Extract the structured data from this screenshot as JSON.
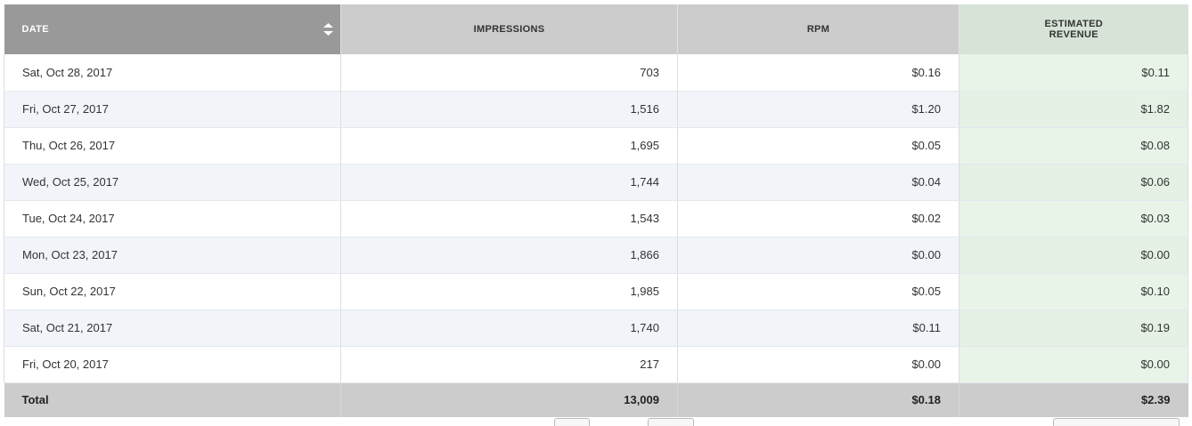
{
  "columns": {
    "date": "DATE",
    "impressions": "IMPRESSIONS",
    "rpm": "RPM",
    "estimated_revenue": "ESTIMATED\nREVENUE"
  },
  "rows": [
    {
      "date": "Sat, Oct 28, 2017",
      "impressions": "703",
      "rpm": "$0.16",
      "revenue": "$0.11"
    },
    {
      "date": "Fri, Oct 27, 2017",
      "impressions": "1,516",
      "rpm": "$1.20",
      "revenue": "$1.82"
    },
    {
      "date": "Thu, Oct 26, 2017",
      "impressions": "1,695",
      "rpm": "$0.05",
      "revenue": "$0.08"
    },
    {
      "date": "Wed, Oct 25, 2017",
      "impressions": "1,744",
      "rpm": "$0.04",
      "revenue": "$0.06"
    },
    {
      "date": "Tue, Oct 24, 2017",
      "impressions": "1,543",
      "rpm": "$0.02",
      "revenue": "$0.03"
    },
    {
      "date": "Mon, Oct 23, 2017",
      "impressions": "1,866",
      "rpm": "$0.00",
      "revenue": "$0.00"
    },
    {
      "date": "Sun, Oct 22, 2017",
      "impressions": "1,985",
      "rpm": "$0.05",
      "revenue": "$0.10"
    },
    {
      "date": "Sat, Oct 21, 2017",
      "impressions": "1,740",
      "rpm": "$0.11",
      "revenue": "$0.19"
    },
    {
      "date": "Fri, Oct 20, 2017",
      "impressions": "217",
      "rpm": "$0.00",
      "revenue": "$0.00"
    }
  ],
  "total": {
    "label": "Total",
    "impressions": "13,009",
    "rpm": "$0.18",
    "revenue": "$2.39"
  },
  "colors": {
    "header_sorted": "#999999",
    "header": "#cccccc",
    "header_revenue": "#d6e3d6",
    "row_alt": "#f1f5fa",
    "revenue_cell": "#e8f4e8",
    "total_row": "#cccccc"
  },
  "icons": {
    "sort": "sort-updown-icon"
  }
}
